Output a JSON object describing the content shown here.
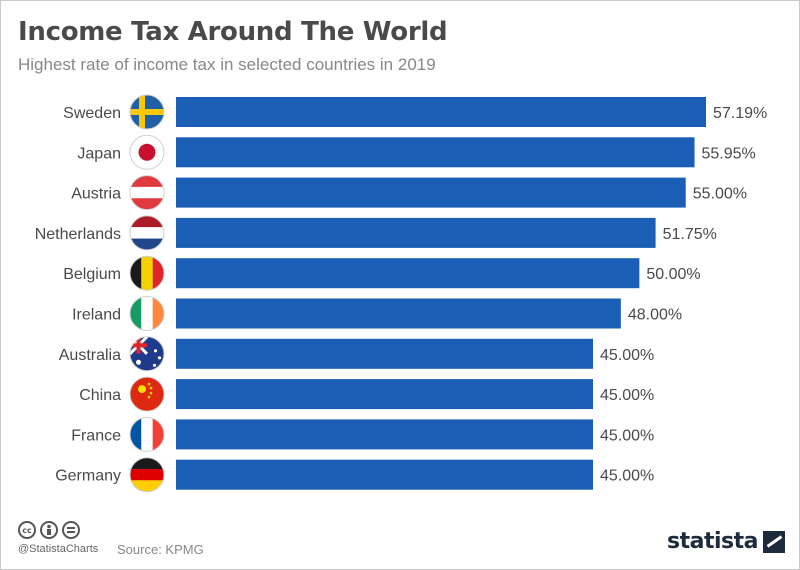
{
  "title": "Income Tax Around The World",
  "subtitle": "Highest rate of income tax in selected countries in 2019",
  "footer": {
    "handle": "@StatistaCharts",
    "source": "Source: KPMG",
    "brand": "statista",
    "license_icons": [
      "cc-icon",
      "attribution-icon",
      "no-derivatives-icon"
    ]
  },
  "colors": {
    "bar": "#1a5eb5",
    "title": "#4a4a4a",
    "subtitle": "#888888"
  },
  "chart_data": {
    "type": "bar",
    "orientation": "horizontal",
    "title": "Income Tax Around The World",
    "subtitle": "Highest rate of income tax in selected countries in 2019",
    "categories": [
      "Sweden",
      "Japan",
      "Austria",
      "Netherlands",
      "Belgium",
      "Ireland",
      "Australia",
      "China",
      "France",
      "Germany"
    ],
    "values": [
      57.19,
      55.95,
      55.0,
      51.75,
      50.0,
      48.0,
      45.0,
      45.0,
      45.0,
      45.0
    ],
    "value_labels": [
      "57.19%",
      "55.95%",
      "55.00%",
      "51.75%",
      "50.00%",
      "48.00%",
      "45.00%",
      "45.00%",
      "45.00%",
      "45.00%"
    ],
    "flags": [
      "sweden-flag-icon",
      "japan-flag-icon",
      "austria-flag-icon",
      "netherlands-flag-icon",
      "belgium-flag-icon",
      "ireland-flag-icon",
      "australia-flag-icon",
      "china-flag-icon",
      "france-flag-icon",
      "germany-flag-icon"
    ],
    "xlabel": "",
    "ylabel": "",
    "xlim": [
      0,
      57.19
    ],
    "grid": false,
    "legend": "none"
  }
}
